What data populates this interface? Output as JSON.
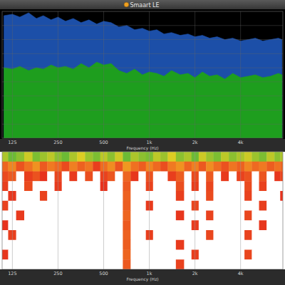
{
  "chart_data": [
    {
      "type": "area",
      "title": "Smaart LE",
      "x": [
        110,
        125,
        140,
        160,
        180,
        200,
        225,
        250,
        280,
        315,
        355,
        400,
        450,
        500,
        560,
        630,
        710,
        800,
        900,
        1000,
        1120,
        1250,
        1400,
        1600,
        1800,
        2000,
        2240,
        2500,
        2800,
        3150,
        3550,
        4000,
        4500,
        5000,
        5600,
        6300,
        7100,
        7500
      ],
      "xlim": [
        107,
        7600
      ],
      "xticks": [
        125,
        250,
        500,
        {
          "value": 1000,
          "label": "1k"
        },
        {
          "value": 2000,
          "label": "2k"
        },
        {
          "value": 4000,
          "label": "4k"
        }
      ],
      "xlabel": "Frequency (Hz)",
      "ylim": [
        -90,
        0
      ],
      "yticks": [
        -80,
        -70,
        -60,
        -50,
        -40,
        -30,
        -20,
        -10
      ],
      "log": "x",
      "grid": true,
      "tick_labels": "x",
      "series": [
        {
          "color": "#1c4fa8",
          "values": [
            -3,
            -2,
            -4,
            -1,
            -5,
            -3,
            -6,
            -4,
            -7,
            -5,
            -8,
            -6,
            -9,
            -7,
            -8,
            -11,
            -10,
            -13,
            -12,
            -14,
            -13,
            -16,
            -15,
            -17,
            -16,
            -18,
            -17,
            -19,
            -18,
            -20,
            -19,
            -21,
            -20,
            -19,
            -21,
            -20,
            -19,
            -20
          ]
        },
        {
          "color": "#1e9e1e",
          "values": [
            -40,
            -41,
            -39,
            -42,
            -40,
            -41,
            -38,
            -40,
            -39,
            -41,
            -37,
            -40,
            -36,
            -38,
            -37,
            -42,
            -44,
            -41,
            -45,
            -43,
            -44,
            -46,
            -42,
            -45,
            -44,
            -47,
            -43,
            -46,
            -45,
            -48,
            -44,
            -47,
            -46,
            -45,
            -47,
            -46,
            -44,
            -45
          ]
        }
      ]
    },
    {
      "type": "heatmap",
      "x": [
        110,
        125,
        140,
        160,
        180,
        200,
        225,
        250,
        280,
        315,
        355,
        400,
        450,
        500,
        560,
        630,
        710,
        800,
        900,
        1000,
        1120,
        1250,
        1400,
        1600,
        1800,
        2000,
        2240,
        2500,
        2800,
        3150,
        3550,
        4000,
        4500,
        5000,
        5600,
        6300,
        7100,
        7500
      ],
      "xlim": [
        107,
        7600
      ],
      "xticks": [
        125,
        250,
        500,
        {
          "value": 1000,
          "label": "1k"
        },
        {
          "value": 2000,
          "label": "2k"
        },
        {
          "value": 4000,
          "label": "4k"
        }
      ],
      "xlabel": "Frequency (Hz)",
      "log": "x",
      "grid": true,
      "tick_labels": "x",
      "color_range": [
        -60,
        -15
      ],
      "cells": [
        [
          -22,
          -18,
          -20,
          -24,
          -19,
          -21,
          -23,
          -20,
          -18,
          -22,
          -25,
          -21,
          -19,
          -23,
          -20,
          -24,
          -18,
          -22,
          -20,
          -19,
          -23,
          -21,
          -25,
          -20,
          -22,
          -18,
          -24,
          -21,
          -19,
          -23,
          -20,
          -22,
          -24,
          -21,
          -19,
          -23,
          -20,
          -22
        ],
        [
          -45,
          -38,
          -50,
          -42,
          -36,
          -48,
          -40,
          -44,
          -52,
          -39,
          -46,
          -41,
          -55,
          -43,
          -37,
          -49,
          -35,
          -42,
          -47,
          -38,
          -44,
          -51,
          -40,
          -36,
          -45,
          -39,
          -48,
          -37,
          -43,
          -50,
          -41,
          -46,
          -38,
          -44,
          -40,
          -47,
          -42,
          -45
        ],
        [
          -52,
          -48,
          -80,
          -55,
          -50,
          -58,
          -80,
          -53,
          -80,
          -56,
          -80,
          -51,
          -80,
          -54,
          -49,
          -80,
          -45,
          -57,
          -80,
          -50,
          -80,
          -80,
          -55,
          -47,
          -80,
          -52,
          -80,
          -48,
          -80,
          -56,
          -80,
          -54,
          -50,
          -80,
          -49,
          -80,
          -57,
          -53
        ],
        [
          -55,
          -80,
          -80,
          -52,
          -80,
          -80,
          -80,
          -56,
          -80,
          -80,
          -80,
          -80,
          -80,
          -58,
          -80,
          -80,
          -48,
          -80,
          -80,
          -54,
          -80,
          -80,
          -80,
          -51,
          -80,
          -55,
          -80,
          -53,
          -80,
          -80,
          -80,
          -80,
          -52,
          -80,
          -54,
          -80,
          -80,
          -80
        ],
        [
          -80,
          -57,
          -80,
          -80,
          -80,
          -54,
          -80,
          -80,
          -80,
          -80,
          -80,
          -80,
          -80,
          -80,
          -80,
          -80,
          -46,
          -80,
          -80,
          -80,
          -80,
          -80,
          -80,
          -55,
          -80,
          -80,
          -80,
          -52,
          -80,
          -80,
          -80,
          -80,
          -54,
          -80,
          -80,
          -80,
          -80,
          -58
        ],
        [
          -54,
          -80,
          -80,
          -80,
          -80,
          -80,
          -80,
          -80,
          -80,
          -80,
          -80,
          -80,
          -80,
          -80,
          -80,
          -80,
          -47,
          -80,
          -80,
          -56,
          -80,
          -80,
          -80,
          -80,
          -80,
          -53,
          -80,
          -80,
          -80,
          -80,
          -80,
          -80,
          -80,
          -80,
          -55,
          -80,
          -80,
          -80
        ],
        [
          -80,
          -80,
          -56,
          -80,
          -80,
          -80,
          -80,
          -80,
          -80,
          -80,
          -80,
          -80,
          -80,
          -80,
          -80,
          -80,
          -45,
          -80,
          -80,
          -80,
          -80,
          -80,
          -80,
          -57,
          -80,
          -80,
          -80,
          -54,
          -80,
          -80,
          -80,
          -80,
          -53,
          -80,
          -80,
          -80,
          -80,
          -80
        ],
        [
          -58,
          -80,
          -80,
          -80,
          -80,
          -80,
          -80,
          -80,
          -80,
          -80,
          -80,
          -80,
          -80,
          -80,
          -80,
          -80,
          -48,
          -80,
          -80,
          -80,
          -80,
          -80,
          -80,
          -80,
          -80,
          -56,
          -80,
          -80,
          -80,
          -80,
          -80,
          -80,
          -80,
          -80,
          -57,
          -80,
          -80,
          -80
        ],
        [
          -80,
          -55,
          -80,
          -80,
          -80,
          -80,
          -80,
          -80,
          -80,
          -80,
          -80,
          -80,
          -80,
          -80,
          -80,
          -80,
          -46,
          -80,
          -80,
          -55,
          -80,
          -80,
          -80,
          -80,
          -80,
          -80,
          -80,
          -53,
          -80,
          -80,
          -80,
          -80,
          -54,
          -80,
          -80,
          -80,
          -80,
          -80
        ],
        [
          -80,
          -80,
          -80,
          -80,
          -80,
          -80,
          -80,
          -80,
          -80,
          -80,
          -80,
          -80,
          -80,
          -80,
          -80,
          -80,
          -47,
          -80,
          -80,
          -80,
          -80,
          -80,
          -80,
          -56,
          -80,
          -80,
          -80,
          -80,
          -80,
          -80,
          -80,
          -80,
          -80,
          -80,
          -80,
          -80,
          -80,
          -80
        ],
        [
          -57,
          -80,
          -80,
          -80,
          -80,
          -80,
          -80,
          -80,
          -80,
          -80,
          -80,
          -80,
          -80,
          -80,
          -80,
          -80,
          -45,
          -80,
          -80,
          -80,
          -80,
          -80,
          -80,
          -80,
          -80,
          -55,
          -80,
          -80,
          -80,
          -80,
          -80,
          -80,
          -53,
          -80,
          -80,
          -80,
          -80,
          -80
        ],
        [
          -80,
          -80,
          -80,
          -80,
          -80,
          -80,
          -80,
          -80,
          -80,
          -80,
          -80,
          -80,
          -80,
          -80,
          -80,
          -80,
          -48,
          -80,
          -80,
          -80,
          -80,
          -80,
          -80,
          -54,
          -80,
          -80,
          -80,
          -80,
          -80,
          -80,
          -80,
          -80,
          -80,
          -80,
          -80,
          -80,
          -80,
          -80
        ]
      ]
    }
  ]
}
